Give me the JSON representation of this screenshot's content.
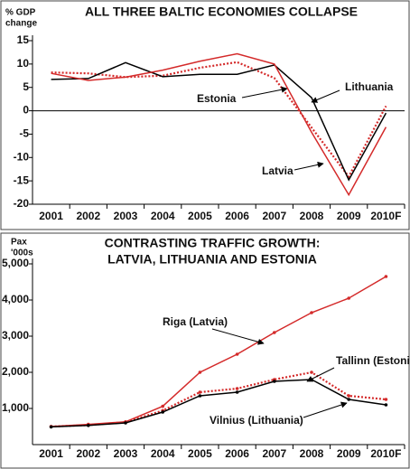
{
  "chart_data": [
    {
      "type": "line",
      "title": [
        "ALL THREE BALTIC ECONOMIES COLLAPSE"
      ],
      "ylabel": [
        "% GDP",
        "change"
      ],
      "categories": [
        "2001",
        "2002",
        "2003",
        "2004",
        "2005",
        "2006",
        "2007",
        "2008",
        "2009",
        "2010F"
      ],
      "ylim": [
        -20,
        15
      ],
      "yticks": [
        -20,
        -15,
        -10,
        -5,
        0,
        5,
        10,
        15
      ],
      "zero_line": true,
      "markers": false,
      "series": [
        {
          "name": "Estonia",
          "color": "#d42a2a",
          "style": "dotted",
          "values": [
            8.2,
            8.0,
            7.2,
            7.5,
            9.2,
            10.4,
            7.0,
            -3.6,
            -14.1,
            1.0
          ]
        },
        {
          "name": "Lithuania",
          "color": "#000000",
          "style": "solid",
          "values": [
            6.7,
            6.9,
            10.3,
            7.3,
            7.8,
            7.8,
            9.8,
            2.8,
            -14.8,
            -0.5
          ]
        },
        {
          "name": "Latvia",
          "color": "#d42a2a",
          "style": "solid",
          "values": [
            8.0,
            6.5,
            7.2,
            8.7,
            10.6,
            12.2,
            10.0,
            -4.6,
            -18.0,
            -3.5
          ]
        }
      ]
    },
    {
      "type": "line",
      "title": [
        "CONTRASTING TRAFFIC GROWTH:",
        "LATVIA, LITHUANIA AND ESTONIA"
      ],
      "ylabel": [
        "Pax",
        "'000s"
      ],
      "categories": [
        "2001",
        "2002",
        "2003",
        "2004",
        "2005",
        "2006",
        "2007",
        "2008",
        "2009",
        "2010F"
      ],
      "ylim": [
        0,
        5000
      ],
      "yticks": [
        {
          "value": 1000,
          "label": "1,000"
        },
        {
          "value": 2000,
          "label": "2,000"
        },
        {
          "value": 3000,
          "label": "3,000"
        },
        {
          "value": 4000,
          "label": "4,000"
        },
        {
          "value": 5000,
          "label": "5,000"
        }
      ],
      "zero_line": false,
      "markers": true,
      "series": [
        {
          "name": "Riga (Latvia)",
          "color": "#d42a2a",
          "style": "solid",
          "values": [
            500,
            560,
            630,
            1060,
            2000,
            2500,
            3100,
            3650,
            4050,
            4650
          ]
        },
        {
          "name": "Tallinn (Estonia)",
          "color": "#d42a2a",
          "style": "dotted",
          "values": [
            500,
            540,
            620,
            940,
            1450,
            1550,
            1800,
            2000,
            1350,
            1250
          ]
        },
        {
          "name": "Vilnius (Lithuania)",
          "color": "#000000",
          "style": "solid",
          "values": [
            490,
            530,
            600,
            900,
            1350,
            1450,
            1750,
            1800,
            1250,
            1100
          ]
        }
      ]
    }
  ]
}
